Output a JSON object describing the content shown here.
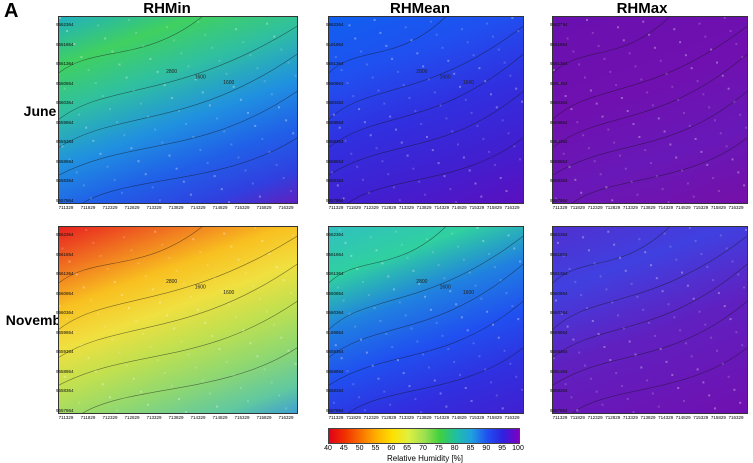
{
  "panel_label": "A",
  "columns": [
    "RHMin",
    "RHMean",
    "RHMax"
  ],
  "rows": [
    "June",
    "November"
  ],
  "y_ticks": [
    "9562364",
    "9561864",
    "9561364",
    "9560864",
    "9560364",
    "9559864",
    "9559364",
    "9558864",
    "9558364",
    "9557864"
  ],
  "x_ticks": [
    "711329",
    "711829",
    "712329",
    "712829",
    "713329",
    "713829",
    "714329",
    "714829",
    "715329",
    "715829",
    "716329"
  ],
  "colorbar": {
    "ticks": [
      "40",
      "45",
      "50",
      "55",
      "60",
      "65",
      "70",
      "75",
      "80",
      "85",
      "90",
      "95",
      "100"
    ],
    "label": "Relative Humidity [%]",
    "colors": [
      "#e0001a",
      "#f03000",
      "#f87000",
      "#ffb000",
      "#ffe000",
      "#e0f040",
      "#a0e050",
      "#40d040",
      "#20c0a0",
      "#20a0e0",
      "#2050f0",
      "#3020e0",
      "#8000c0"
    ]
  },
  "contour_labels": [
    "2800",
    "1600",
    "1600"
  ]
}
